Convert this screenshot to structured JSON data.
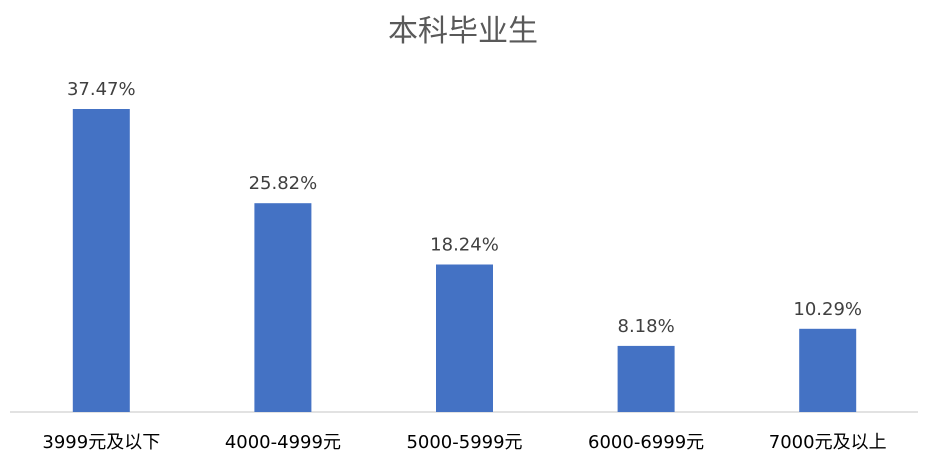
{
  "chart_data": {
    "type": "bar",
    "title": "本科毕业生",
    "categories": [
      "3999元及以下",
      "4000-4999元",
      "5000-5999元",
      "6000-6999元",
      "7000元及以上"
    ],
    "values": [
      37.47,
      25.82,
      18.24,
      8.18,
      10.29
    ],
    "data_labels": [
      "37.47%",
      "25.82%",
      "18.24%",
      "8.18%",
      "10.29%"
    ],
    "unit": "%",
    "ylim": [
      0,
      37.47
    ],
    "grid": false,
    "legend": "none",
    "colors": {
      "bar": "#4472C4",
      "axis": "#D9D9D9",
      "title": "#595959",
      "label": "#404040"
    }
  }
}
